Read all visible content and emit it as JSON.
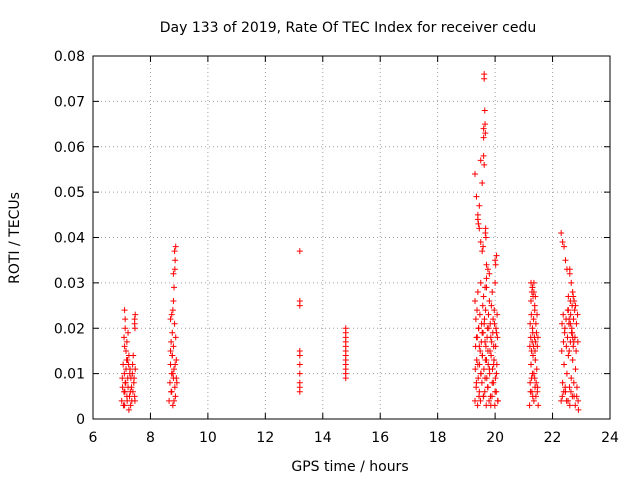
{
  "chart_data": {
    "type": "scatter",
    "title": "Day 133 of 2019, Rate Of TEC Index for receiver cedu",
    "xlabel": "GPS time / hours",
    "ylabel": "ROTI / TECUs",
    "xlim": [
      6,
      24
    ],
    "ylim": [
      0,
      0.08
    ],
    "x_ticks": [
      6,
      8,
      10,
      12,
      14,
      16,
      18,
      20,
      22,
      24
    ],
    "y_ticks": [
      0,
      0.01,
      0.02,
      0.03,
      0.04,
      0.05,
      0.06,
      0.07,
      0.08
    ],
    "x_tick_labels": [
      "6",
      "8",
      "10",
      "12",
      "14",
      "16",
      "18",
      "20",
      "22",
      "24"
    ],
    "y_tick_labels": [
      "0",
      "0.01",
      "0.02",
      "0.03",
      "0.04",
      "0.05",
      "0.06",
      "0.07",
      "0.08"
    ],
    "grid": true,
    "marker": "+",
    "marker_color": "#ff0000",
    "series": [
      {
        "name": "ROTI",
        "x": [
          7.0,
          7.02,
          7.05,
          7.08,
          7.1,
          7.12,
          7.15,
          7.18,
          7.2,
          7.22,
          7.25,
          7.28,
          7.3,
          7.32,
          7.35,
          7.38,
          7.4,
          7.42,
          7.45,
          7.47,
          7.03,
          7.06,
          7.09,
          7.11,
          7.14,
          7.17,
          7.19,
          7.21,
          7.24,
          7.27,
          7.29,
          7.31,
          7.34,
          7.37,
          7.39,
          7.43,
          7.46,
          7.08,
          7.1,
          7.12,
          7.15,
          7.18,
          7.2,
          7.22,
          7.25,
          7.45,
          7.47,
          7.45,
          7.46,
          7.1,
          7.12,
          8.65,
          8.68,
          8.7,
          8.72,
          8.74,
          8.76,
          8.78,
          8.8,
          8.82,
          8.85,
          8.87,
          8.9,
          8.92,
          8.7,
          8.74,
          8.78,
          8.82,
          8.86,
          8.9,
          8.72,
          8.76,
          8.8,
          8.84,
          8.88,
          8.74,
          8.78,
          8.8,
          8.82,
          8.85,
          8.86,
          8.88,
          8.8,
          8.84,
          8.7,
          8.76,
          13.2,
          13.2,
          13.2,
          13.2,
          13.2,
          13.2,
          13.2,
          13.2,
          13.2,
          13.2,
          14.8,
          14.8,
          14.8,
          14.8,
          14.8,
          14.8,
          14.8,
          14.8,
          14.8,
          14.8,
          14.8,
          14.8,
          19.3,
          19.35,
          19.4,
          19.45,
          19.5,
          19.55,
          19.6,
          19.65,
          19.7,
          19.75,
          19.8,
          19.85,
          19.9,
          19.95,
          20.0,
          20.05,
          20.1,
          19.32,
          19.38,
          19.42,
          19.48,
          19.52,
          19.58,
          19.62,
          19.68,
          19.72,
          19.78,
          19.82,
          19.88,
          19.92,
          19.98,
          20.02,
          20.08,
          19.33,
          19.37,
          19.43,
          19.47,
          19.53,
          19.57,
          19.63,
          19.67,
          19.73,
          19.77,
          19.83,
          19.87,
          19.93,
          19.97,
          20.03,
          20.07,
          19.31,
          19.36,
          19.41,
          19.46,
          19.51,
          19.56,
          19.61,
          19.66,
          19.71,
          19.76,
          19.81,
          19.86,
          19.91,
          19.96,
          20.01,
          20.06,
          19.34,
          19.44,
          19.54,
          19.64,
          19.74,
          19.84,
          19.94,
          20.04,
          19.39,
          19.49,
          19.59,
          19.69,
          19.79,
          19.89,
          19.99,
          20.09,
          19.3,
          19.4,
          19.5,
          19.6,
          19.7,
          19.8,
          19.9,
          20.0,
          19.35,
          19.45,
          19.55,
          19.65,
          19.75,
          19.85,
          19.95,
          20.05,
          19.3,
          19.35,
          19.4,
          19.45,
          19.45,
          19.5,
          19.55,
          19.6,
          19.6,
          19.62,
          19.62,
          19.64,
          19.65,
          19.66,
          19.66,
          19.67,
          19.68,
          19.7,
          19.75,
          19.8,
          20.0,
          20.02,
          20.05,
          19.5,
          19.55,
          19.58,
          19.65,
          19.7,
          19.4,
          19.42,
          19.6,
          19.62,
          21.2,
          21.22,
          21.25,
          21.28,
          21.3,
          21.32,
          21.35,
          21.38,
          21.4,
          21.42,
          21.45,
          21.48,
          21.5,
          21.21,
          21.24,
          21.27,
          21.29,
          21.31,
          21.34,
          21.37,
          21.39,
          21.41,
          21.44,
          21.47,
          21.49,
          21.22,
          21.26,
          21.3,
          21.34,
          21.38,
          21.42,
          21.46,
          21.23,
          21.27,
          21.31,
          21.35,
          21.39,
          21.43,
          21.47,
          21.25,
          21.28,
          21.3,
          21.32,
          21.35,
          21.38,
          21.3,
          21.35,
          21.4,
          21.25,
          22.3,
          22.35,
          22.4,
          22.45,
          22.5,
          22.55,
          22.6,
          22.65,
          22.7,
          22.75,
          22.8,
          22.85,
          22.9,
          22.32,
          22.38,
          22.42,
          22.48,
          22.52,
          22.58,
          22.62,
          22.68,
          22.72,
          22.78,
          22.82,
          22.88,
          22.33,
          22.37,
          22.43,
          22.47,
          22.53,
          22.57,
          22.63,
          22.67,
          22.73,
          22.77,
          22.83,
          22.87,
          22.34,
          22.44,
          22.54,
          22.64,
          22.74,
          22.84,
          22.39,
          22.49,
          22.59,
          22.69,
          22.79,
          22.89,
          22.3,
          22.35,
          22.4,
          22.45,
          22.5,
          22.55,
          22.6,
          22.62,
          22.65,
          22.68,
          22.7,
          22.72,
          22.75,
          22.8,
          22.55,
          22.58,
          22.62,
          22.66,
          22.7,
          22.74,
          22.6
        ],
        "y": [
          0.004,
          0.009,
          0.012,
          0.006,
          0.003,
          0.008,
          0.011,
          0.005,
          0.013,
          0.007,
          0.002,
          0.01,
          0.006,
          0.009,
          0.004,
          0.012,
          0.014,
          0.008,
          0.005,
          0.011,
          0.007,
          0.003,
          0.01,
          0.006,
          0.008,
          0.013,
          0.004,
          0.009,
          0.012,
          0.005,
          0.011,
          0.003,
          0.007,
          0.01,
          0.006,
          0.009,
          0.004,
          0.018,
          0.016,
          0.02,
          0.015,
          0.017,
          0.013,
          0.019,
          0.014,
          0.022,
          0.023,
          0.021,
          0.02,
          0.024,
          0.022,
          0.004,
          0.008,
          0.012,
          0.006,
          0.01,
          0.014,
          0.003,
          0.009,
          0.011,
          0.007,
          0.005,
          0.013,
          0.008,
          0.015,
          0.006,
          0.01,
          0.004,
          0.012,
          0.009,
          0.017,
          0.019,
          0.016,
          0.021,
          0.018,
          0.023,
          0.024,
          0.026,
          0.029,
          0.033,
          0.035,
          0.038,
          0.032,
          0.037,
          0.022,
          0.014,
          0.037,
          0.026,
          0.025,
          0.015,
          0.014,
          0.012,
          0.01,
          0.008,
          0.007,
          0.006,
          0.02,
          0.019,
          0.018,
          0.017,
          0.016,
          0.015,
          0.014,
          0.013,
          0.012,
          0.011,
          0.01,
          0.009,
          0.004,
          0.008,
          0.012,
          0.006,
          0.01,
          0.014,
          0.005,
          0.009,
          0.013,
          0.007,
          0.011,
          0.003,
          0.008,
          0.012,
          0.006,
          0.01,
          0.004,
          0.016,
          0.018,
          0.02,
          0.015,
          0.017,
          0.019,
          0.021,
          0.016,
          0.018,
          0.02,
          0.015,
          0.017,
          0.019,
          0.021,
          0.016,
          0.018,
          0.022,
          0.024,
          0.02,
          0.023,
          0.021,
          0.025,
          0.022,
          0.024,
          0.02,
          0.023,
          0.021,
          0.025,
          0.022,
          0.024,
          0.02,
          0.023,
          0.011,
          0.013,
          0.009,
          0.012,
          0.01,
          0.014,
          0.011,
          0.013,
          0.009,
          0.012,
          0.01,
          0.014,
          0.011,
          0.013,
          0.009,
          0.012,
          0.007,
          0.005,
          0.008,
          0.006,
          0.007,
          0.005,
          0.008,
          0.006,
          0.003,
          0.004,
          0.005,
          0.003,
          0.004,
          0.005,
          0.003,
          0.004,
          0.026,
          0.028,
          0.03,
          0.027,
          0.029,
          0.026,
          0.028,
          0.03,
          0.018,
          0.016,
          0.019,
          0.017,
          0.015,
          0.018,
          0.016,
          0.019,
          0.054,
          0.049,
          0.045,
          0.047,
          0.042,
          0.057,
          0.052,
          0.064,
          0.062,
          0.076,
          0.075,
          0.068,
          0.065,
          0.063,
          0.041,
          0.042,
          0.04,
          0.034,
          0.033,
          0.032,
          0.035,
          0.034,
          0.036,
          0.039,
          0.037,
          0.038,
          0.029,
          0.031,
          0.044,
          0.043,
          0.058,
          0.056,
          0.003,
          0.008,
          0.012,
          0.006,
          0.01,
          0.014,
          0.004,
          0.009,
          0.013,
          0.005,
          0.011,
          0.007,
          0.003,
          0.016,
          0.018,
          0.015,
          0.017,
          0.019,
          0.016,
          0.018,
          0.015,
          0.017,
          0.019,
          0.016,
          0.018,
          0.021,
          0.023,
          0.02,
          0.022,
          0.024,
          0.021,
          0.023,
          0.006,
          0.009,
          0.005,
          0.01,
          0.007,
          0.008,
          0.006,
          0.026,
          0.028,
          0.029,
          0.027,
          0.03,
          0.025,
          0.029,
          0.028,
          0.027,
          0.03,
          0.004,
          0.008,
          0.012,
          0.006,
          0.01,
          0.014,
          0.003,
          0.009,
          0.013,
          0.005,
          0.011,
          0.007,
          0.002,
          0.015,
          0.017,
          0.019,
          0.016,
          0.018,
          0.015,
          0.017,
          0.019,
          0.016,
          0.018,
          0.015,
          0.017,
          0.021,
          0.023,
          0.02,
          0.022,
          0.024,
          0.021,
          0.023,
          0.02,
          0.022,
          0.024,
          0.021,
          0.023,
          0.005,
          0.007,
          0.004,
          0.006,
          0.008,
          0.005,
          0.006,
          0.004,
          0.007,
          0.005,
          0.003,
          0.004,
          0.041,
          0.039,
          0.038,
          0.035,
          0.033,
          0.027,
          0.032,
          0.026,
          0.03,
          0.025,
          0.028,
          0.027,
          0.026,
          0.025,
          0.024,
          0.022,
          0.021,
          0.019,
          0.018,
          0.017,
          0.033
        ]
      }
    ]
  }
}
